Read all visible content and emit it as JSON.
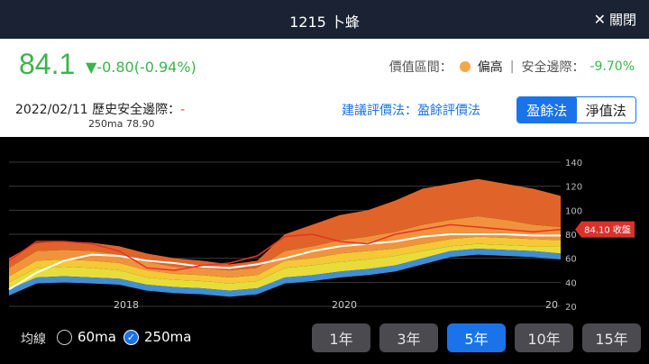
{
  "header": {
    "title": "1215 卜蜂",
    "close_label": "關閉",
    "close_icon": "close-icon"
  },
  "quote": {
    "price": "84.1",
    "change": "▼-0.80(-0.94%)",
    "valuation_label": "價值區間：",
    "valuation_level": "偏高",
    "valuation_color": "#f5a54a",
    "margin_label": "安全邊際：",
    "margin_value": "-9.70%",
    "separator": "|"
  },
  "info": {
    "date_title": "2022/02/11 歷史安全邊際：",
    "date_dash": "-",
    "ma_value": "250ma 78.90",
    "method": "建議評價法：盈餘評價法",
    "segments": [
      "盈餘法",
      "淨值法"
    ],
    "active_segment": 0
  },
  "chart_data": {
    "type": "area",
    "y_ticks": [
      "140",
      "120",
      "100",
      "80",
      "60",
      "40",
      "20"
    ],
    "ylim": [
      20,
      140
    ],
    "x_ticks": [
      "2018",
      "2020",
      "20"
    ],
    "price_tag": "84.10 收盤",
    "colors": {
      "top": "#e0642a",
      "upper": "#f0933c",
      "mid": "#f4c836",
      "low": "#e8dc3a",
      "bottom": "#3f8fd4",
      "price": "#e8302a",
      "ma": "#ffffff"
    },
    "bands_x": [
      0,
      1,
      2,
      3,
      4,
      5,
      6,
      7,
      8,
      9,
      10,
      11,
      12,
      13,
      14,
      15,
      16,
      17,
      18,
      19,
      20
    ],
    "band_top": [
      60,
      73,
      74,
      73,
      70,
      64,
      60,
      58,
      55,
      58,
      80,
      88,
      96,
      100,
      108,
      118,
      122,
      126,
      122,
      118,
      112
    ],
    "band_upper": [
      52,
      66,
      67,
      66,
      63,
      57,
      53,
      52,
      50,
      52,
      66,
      70,
      75,
      78,
      82,
      88,
      92,
      95,
      92,
      88,
      86
    ],
    "band_mid": [
      45,
      58,
      59,
      58,
      56,
      50,
      47,
      46,
      44,
      46,
      58,
      60,
      64,
      66,
      68,
      72,
      76,
      78,
      77,
      76,
      75
    ],
    "band_low": [
      40,
      52,
      53,
      52,
      50,
      44,
      42,
      41,
      39,
      41,
      52,
      54,
      57,
      59,
      62,
      66,
      70,
      72,
      71,
      70,
      70
    ],
    "band_bottom": [
      34,
      44,
      45,
      44,
      43,
      38,
      36,
      35,
      33,
      35,
      44,
      46,
      49,
      51,
      54,
      60,
      66,
      68,
      67,
      66,
      64
    ],
    "price_line": [
      58,
      74,
      74,
      72,
      66,
      52,
      50,
      54,
      56,
      62,
      78,
      80,
      74,
      72,
      80,
      84,
      88,
      86,
      84,
      82,
      84
    ],
    "ma_line": [
      34,
      48,
      58,
      63,
      62,
      58,
      56,
      53,
      52,
      55,
      60,
      66,
      70,
      72,
      74,
      78,
      80,
      80,
      80,
      79,
      79
    ]
  },
  "bottom": {
    "ma_label": "均線",
    "ma_options": [
      "60ma",
      "250ma"
    ],
    "ma_selected": 1,
    "periods": [
      "1年",
      "3年",
      "5年",
      "10年",
      "15年"
    ],
    "period_selected": 2
  }
}
